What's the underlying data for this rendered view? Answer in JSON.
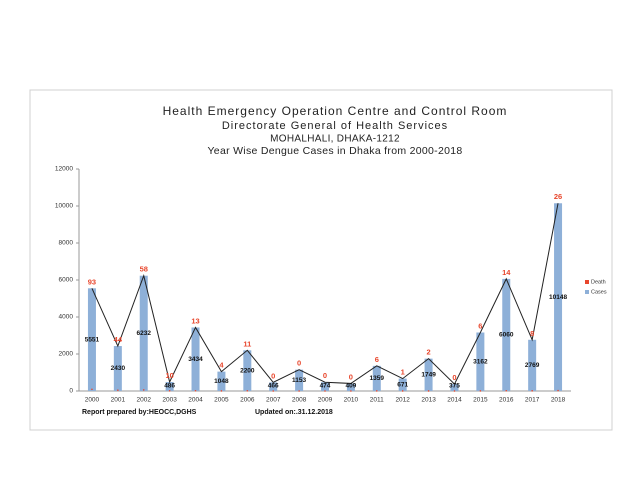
{
  "chart_data": {
    "type": "bar-line",
    "title_lines": [
      "Health Emergency Operation Centre and Control Room",
      "Directorate General of Health Services",
      "MOHALHALI, DHAKA-1212",
      "Year Wise Dengue Cases in Dhaka from 2000-2018"
    ],
    "categories": [
      "2000",
      "2001",
      "2002",
      "2003",
      "2004",
      "2005",
      "2006",
      "2007",
      "2008",
      "2009",
      "2010",
      "2011",
      "2012",
      "2013",
      "2014",
      "2015",
      "2016",
      "2017",
      "2018"
    ],
    "series": [
      {
        "name": "Death",
        "color": "#e8462c",
        "values": [
          93,
          44,
          58,
          10,
          13,
          4,
          11,
          0,
          0,
          0,
          0,
          6,
          1,
          2,
          0,
          6,
          14,
          8,
          26
        ]
      },
      {
        "name": "Cases",
        "color": "#8eb0d8",
        "values": [
          5551,
          2430,
          6232,
          486,
          3434,
          1048,
          2200,
          466,
          1153,
          474,
          409,
          1359,
          671,
          1749,
          375,
          3162,
          6060,
          2769,
          10148
        ]
      }
    ],
    "ylim": [
      0,
      12000
    ],
    "yticks": [
      0,
      2000,
      4000,
      6000,
      8000,
      10000,
      12000
    ],
    "legend": "right",
    "footer": [
      "Report prepared by:HEOCC,DGHS",
      "Updated on:.31.12.2018"
    ]
  }
}
